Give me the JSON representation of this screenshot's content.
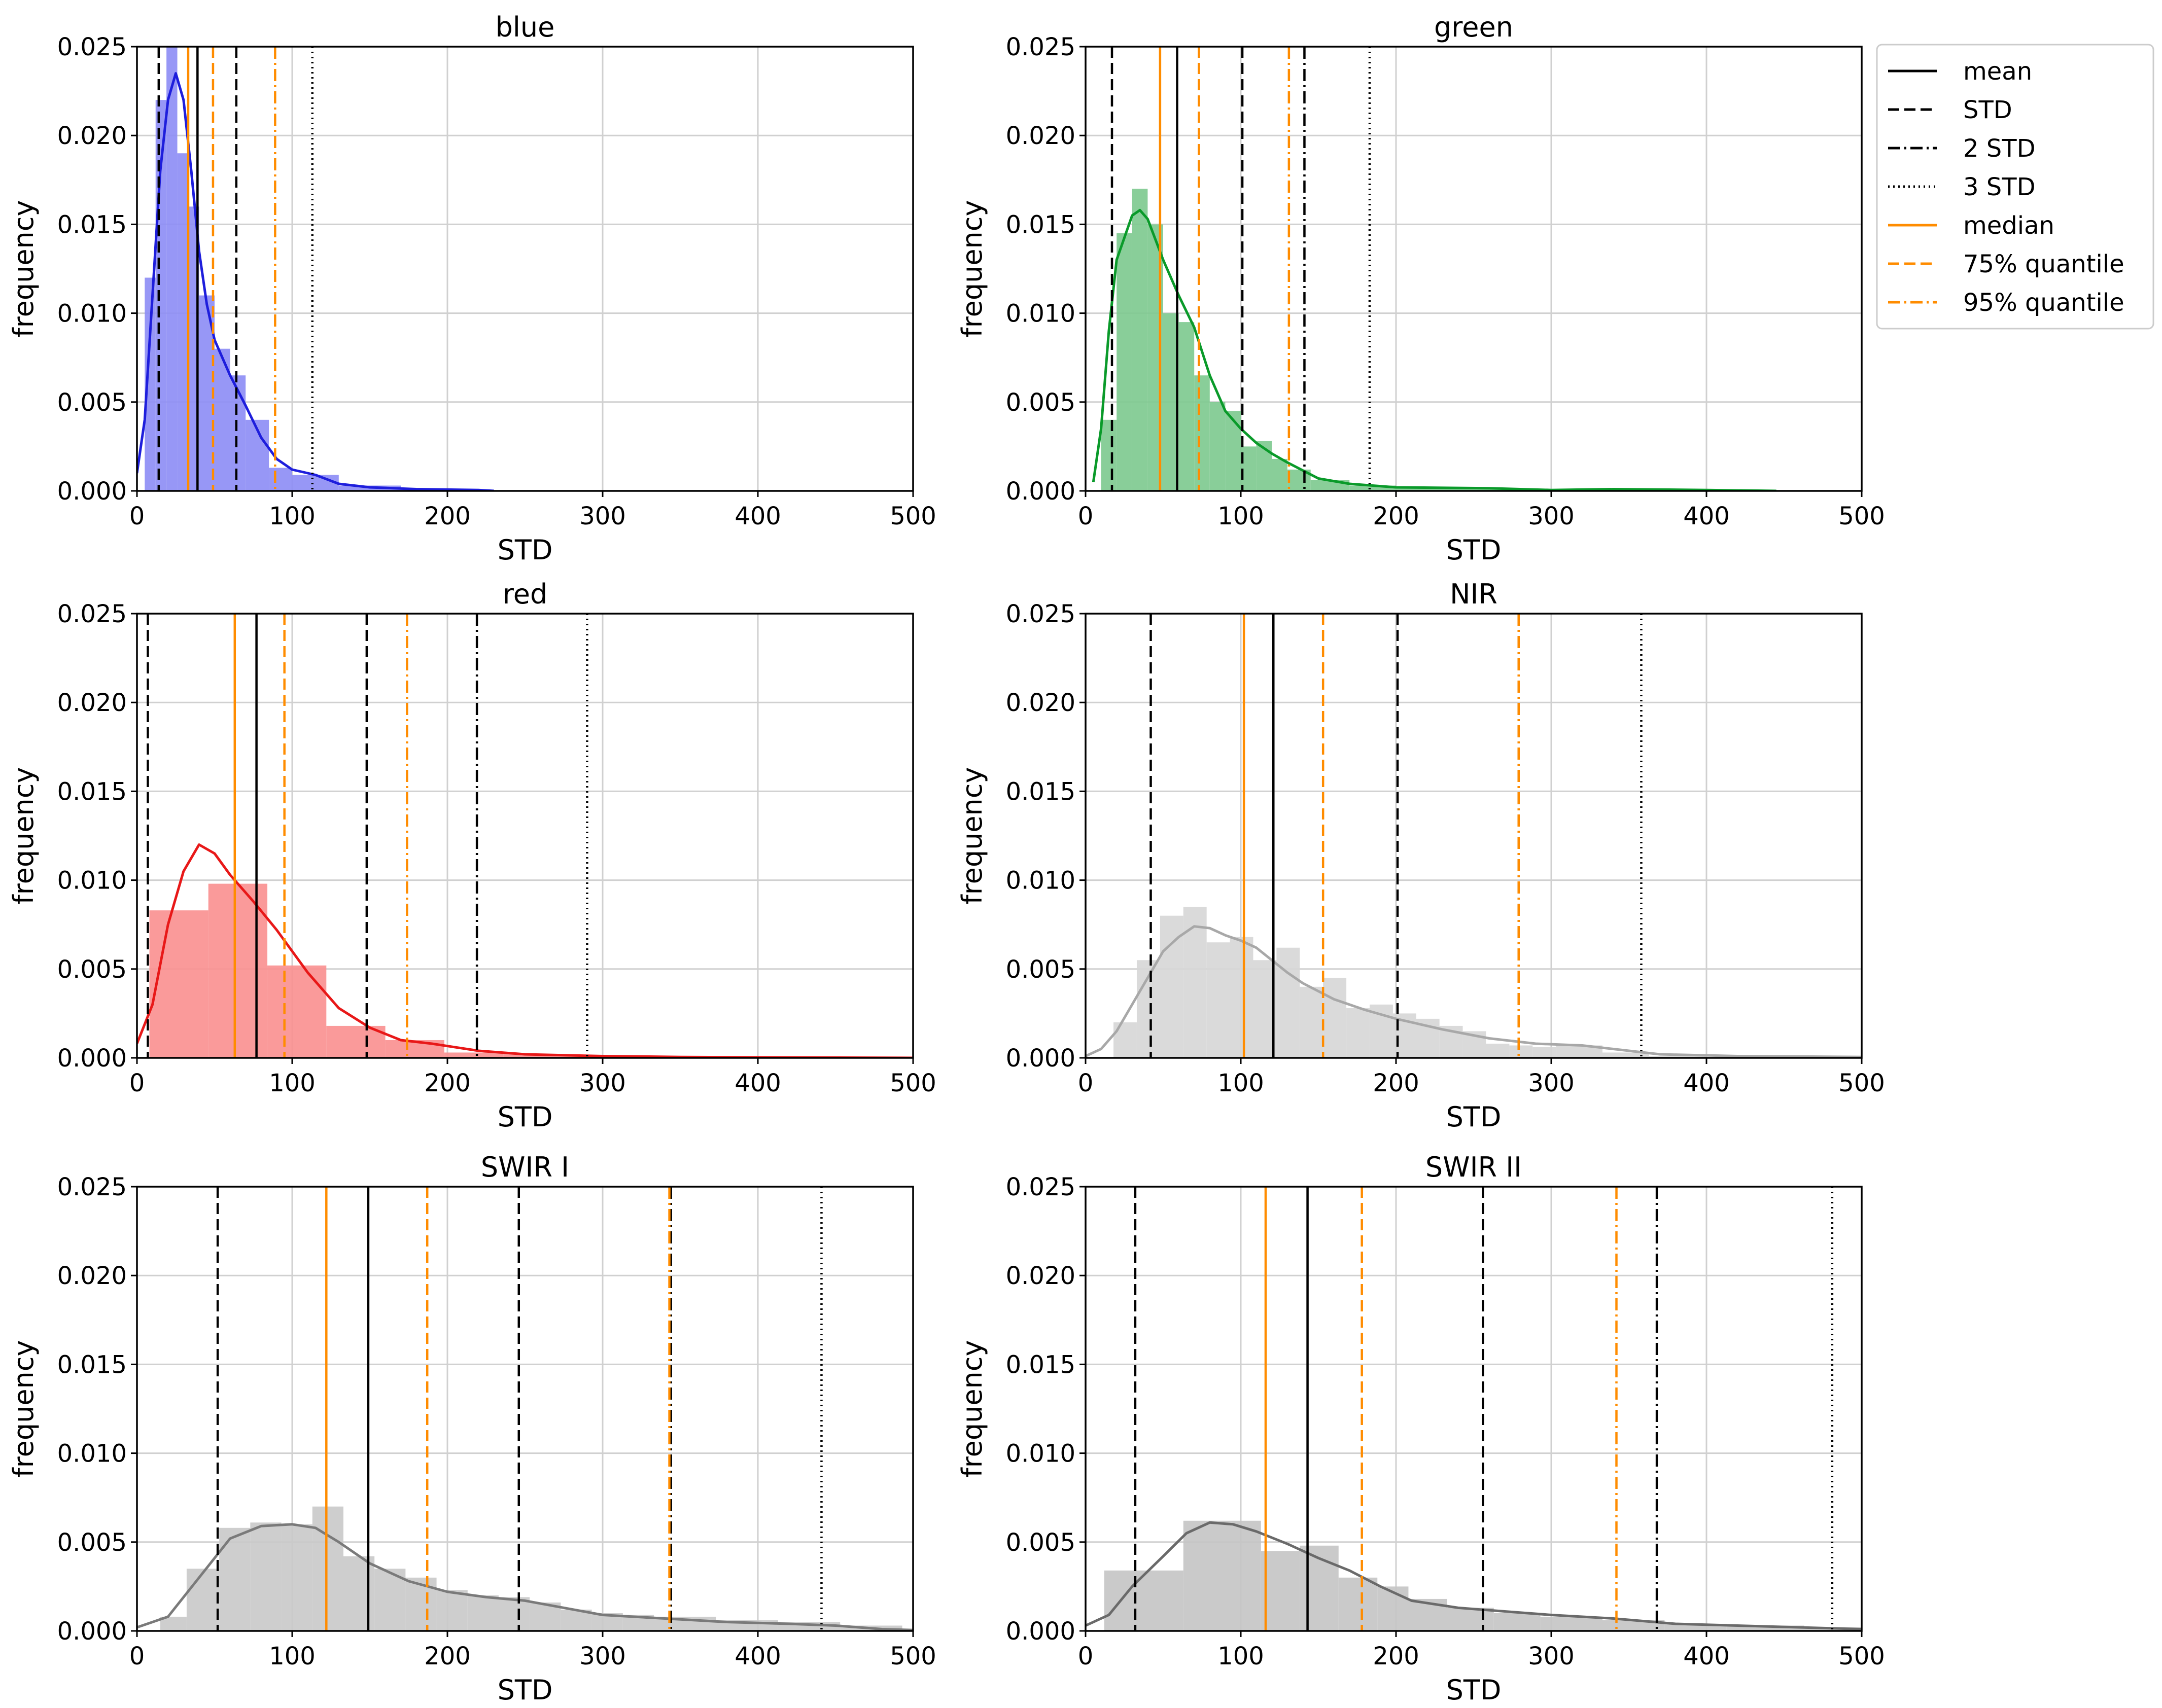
{
  "legend": {
    "placement": "top-right",
    "items": [
      {
        "label": "mean",
        "color": "#000000",
        "style": "solid"
      },
      {
        "label": "STD",
        "color": "#000000",
        "style": "dashed"
      },
      {
        "label": "2 STD",
        "color": "#000000",
        "style": "dashdot"
      },
      {
        "label": "3 STD",
        "color": "#000000",
        "style": "dotted"
      },
      {
        "label": "median",
        "color": "#ff8c00",
        "style": "solid"
      },
      {
        "label": "75% quantile",
        "color": "#ff8c00",
        "style": "dashed"
      },
      {
        "label": "95% quantile",
        "color": "#ff8c00",
        "style": "dashdot"
      }
    ]
  },
  "chart_data": [
    {
      "type": "histogram",
      "title": "blue",
      "xlabel": "STD",
      "ylabel": "frequency",
      "xlim": [
        0,
        500
      ],
      "ylim": [
        0,
        0.025
      ],
      "xticks": [
        "0",
        "100",
        "200",
        "300",
        "400",
        "500"
      ],
      "yticks": [
        "0.000",
        "0.005",
        "0.010",
        "0.015",
        "0.020",
        "0.025"
      ],
      "grid": true,
      "fill_color": "#8c8cf5",
      "line_color": "#1e1edc",
      "bins": [
        [
          5,
          12,
          0.012
        ],
        [
          12,
          19,
          0.022
        ],
        [
          19,
          26,
          0.026
        ],
        [
          26,
          33,
          0.019
        ],
        [
          33,
          40,
          0.016
        ],
        [
          40,
          50,
          0.011
        ],
        [
          50,
          60,
          0.008
        ],
        [
          60,
          70,
          0.0065
        ],
        [
          70,
          85,
          0.004
        ],
        [
          85,
          100,
          0.0013
        ],
        [
          100,
          130,
          0.0009
        ],
        [
          130,
          170,
          0.0003
        ],
        [
          170,
          225,
          0.0001
        ]
      ],
      "kde": [
        [
          0,
          0.001
        ],
        [
          5,
          0.004
        ],
        [
          10,
          0.011
        ],
        [
          15,
          0.018
        ],
        [
          20,
          0.022
        ],
        [
          25,
          0.0235
        ],
        [
          30,
          0.022
        ],
        [
          35,
          0.018
        ],
        [
          40,
          0.0135
        ],
        [
          45,
          0.0105
        ],
        [
          50,
          0.0085
        ],
        [
          60,
          0.0065
        ],
        [
          70,
          0.0048
        ],
        [
          80,
          0.003
        ],
        [
          90,
          0.0018
        ],
        [
          100,
          0.0012
        ],
        [
          115,
          0.0009
        ],
        [
          130,
          0.0004
        ],
        [
          150,
          0.0002
        ],
        [
          180,
          0.0001
        ],
        [
          220,
          5e-05
        ],
        [
          230,
          0
        ]
      ],
      "vlines": {
        "mean": 39,
        "std": [
          14,
          64
        ],
        "std2": [],
        "std3": [
          113
        ],
        "median": 33,
        "q75": 49,
        "q95": 89
      }
    },
    {
      "type": "histogram",
      "title": "green",
      "xlabel": "STD",
      "ylabel": "frequency",
      "xlim": [
        0,
        500
      ],
      "ylim": [
        0,
        0.025
      ],
      "xticks": [
        "0",
        "100",
        "200",
        "300",
        "400",
        "500"
      ],
      "yticks": [
        "0.000",
        "0.005",
        "0.010",
        "0.015",
        "0.020",
        "0.025"
      ],
      "grid": true,
      "fill_color": "#7cc98e",
      "line_color": "#0a9a2a",
      "bins": [
        [
          10,
          20,
          0.004
        ],
        [
          20,
          30,
          0.0145
        ],
        [
          30,
          40,
          0.017
        ],
        [
          40,
          50,
          0.015
        ],
        [
          50,
          60,
          0.01
        ],
        [
          60,
          70,
          0.0095
        ],
        [
          70,
          80,
          0.0065
        ],
        [
          80,
          90,
          0.005
        ],
        [
          90,
          100,
          0.0045
        ],
        [
          100,
          110,
          0.0025
        ],
        [
          110,
          120,
          0.0028
        ],
        [
          120,
          130,
          0.0018
        ],
        [
          130,
          145,
          0.0012
        ],
        [
          145,
          170,
          0.0006
        ],
        [
          170,
          200,
          0.0003
        ],
        [
          200,
          260,
          0.0002
        ],
        [
          260,
          350,
          0.0001
        ],
        [
          350,
          445,
          5e-05
        ]
      ],
      "kde": [
        [
          5,
          0.0005
        ],
        [
          10,
          0.0035
        ],
        [
          15,
          0.009
        ],
        [
          20,
          0.013
        ],
        [
          30,
          0.0155
        ],
        [
          35,
          0.0158
        ],
        [
          40,
          0.0153
        ],
        [
          50,
          0.013
        ],
        [
          60,
          0.011
        ],
        [
          70,
          0.0092
        ],
        [
          80,
          0.0065
        ],
        [
          90,
          0.0045
        ],
        [
          100,
          0.0035
        ],
        [
          110,
          0.0027
        ],
        [
          120,
          0.0021
        ],
        [
          130,
          0.0016
        ],
        [
          150,
          0.0007
        ],
        [
          170,
          0.0004
        ],
        [
          200,
          0.0002
        ],
        [
          260,
          0.00015
        ],
        [
          300,
          5e-05
        ],
        [
          340,
          0.0001
        ],
        [
          400,
          5e-05
        ],
        [
          445,
          0
        ]
      ],
      "vlines": {
        "mean": 59,
        "std": [
          17,
          101
        ],
        "std2": [
          141
        ],
        "std3": [
          183
        ],
        "median": 48,
        "q75": 73,
        "q95": 131
      }
    },
    {
      "type": "histogram",
      "title": "red",
      "xlabel": "STD",
      "ylabel": "frequency",
      "xlim": [
        0,
        500
      ],
      "ylim": [
        0,
        0.025
      ],
      "xticks": [
        "0",
        "100",
        "200",
        "300",
        "400",
        "500"
      ],
      "yticks": [
        "0.000",
        "0.005",
        "0.010",
        "0.015",
        "0.020",
        "0.025"
      ],
      "grid": true,
      "fill_color": "#f98f8f",
      "line_color": "#e81818",
      "bins": [
        [
          8,
          46,
          0.0083
        ],
        [
          46,
          84,
          0.0098
        ],
        [
          84,
          122,
          0.0052
        ],
        [
          122,
          160,
          0.0018
        ],
        [
          160,
          198,
          0.001
        ],
        [
          198,
          236,
          0.0003
        ],
        [
          236,
          274,
          0.0002
        ],
        [
          274,
          312,
          0.0001
        ],
        [
          312,
          350,
          0.0001
        ],
        [
          350,
          500,
          5e-05
        ]
      ],
      "kde": [
        [
          0,
          0.0008
        ],
        [
          10,
          0.003
        ],
        [
          20,
          0.0075
        ],
        [
          30,
          0.0105
        ],
        [
          40,
          0.012
        ],
        [
          50,
          0.0115
        ],
        [
          60,
          0.0103
        ],
        [
          75,
          0.0088
        ],
        [
          90,
          0.0072
        ],
        [
          110,
          0.0048
        ],
        [
          130,
          0.0028
        ],
        [
          150,
          0.0017
        ],
        [
          170,
          0.001
        ],
        [
          190,
          0.0008
        ],
        [
          220,
          0.0004
        ],
        [
          250,
          0.0002
        ],
        [
          300,
          0.0001
        ],
        [
          350,
          5e-05
        ],
        [
          400,
          3e-05
        ],
        [
          500,
          0
        ]
      ],
      "vlines": {
        "mean": 77,
        "std": [
          7,
          148
        ],
        "std2": [
          219
        ],
        "std3": [
          290
        ],
        "median": 63,
        "q75": 95,
        "q95": 174
      }
    },
    {
      "type": "histogram",
      "title": "NIR",
      "xlabel": "STD",
      "ylabel": "frequency",
      "xlim": [
        0,
        500
      ],
      "ylim": [
        0,
        0.025
      ],
      "xticks": [
        "0",
        "100",
        "200",
        "300",
        "400",
        "500"
      ],
      "yticks": [
        "0.000",
        "0.005",
        "0.010",
        "0.015",
        "0.020",
        "0.025"
      ],
      "grid": true,
      "fill_color": "#d6d6d6",
      "line_color": "#a8a8a8",
      "bins": [
        [
          18,
          33,
          0.002
        ],
        [
          33,
          48,
          0.0055
        ],
        [
          48,
          63,
          0.008
        ],
        [
          63,
          78,
          0.0085
        ],
        [
          78,
          93,
          0.0065
        ],
        [
          93,
          108,
          0.0068
        ],
        [
          108,
          123,
          0.0055
        ],
        [
          123,
          138,
          0.0062
        ],
        [
          138,
          153,
          0.004
        ],
        [
          153,
          168,
          0.0045
        ],
        [
          168,
          183,
          0.0028
        ],
        [
          183,
          198,
          0.003
        ],
        [
          198,
          213,
          0.0025
        ],
        [
          213,
          228,
          0.0022
        ],
        [
          228,
          243,
          0.0018
        ],
        [
          243,
          258,
          0.0015
        ],
        [
          258,
          273,
          0.0008
        ],
        [
          273,
          288,
          0.0007
        ],
        [
          288,
          303,
          0.0006
        ],
        [
          303,
          333,
          0.0007
        ],
        [
          333,
          363,
          0.0003
        ],
        [
          363,
          400,
          0.0001
        ]
      ],
      "kde": [
        [
          0,
          0.0001
        ],
        [
          10,
          0.0005
        ],
        [
          20,
          0.0015
        ],
        [
          30,
          0.003
        ],
        [
          40,
          0.0045
        ],
        [
          50,
          0.006
        ],
        [
          60,
          0.0068
        ],
        [
          70,
          0.0074
        ],
        [
          80,
          0.0073
        ],
        [
          90,
          0.0069
        ],
        [
          100,
          0.0066
        ],
        [
          110,
          0.0062
        ],
        [
          120,
          0.0055
        ],
        [
          130,
          0.0048
        ],
        [
          140,
          0.0042
        ],
        [
          160,
          0.0033
        ],
        [
          180,
          0.0027
        ],
        [
          200,
          0.0022
        ],
        [
          230,
          0.0016
        ],
        [
          260,
          0.0011
        ],
        [
          290,
          0.0008
        ],
        [
          320,
          0.0007
        ],
        [
          340,
          0.0005
        ],
        [
          370,
          0.0002
        ],
        [
          420,
          0.0001
        ],
        [
          500,
          5e-05
        ]
      ],
      "vlines": {
        "mean": 121,
        "std": [
          42,
          201
        ],
        "std2": [
          279
        ],
        "std3": [
          358
        ],
        "median": 102,
        "q75": 153,
        "q95": 279
      }
    },
    {
      "type": "histogram",
      "title": "SWIR I",
      "xlabel": "STD",
      "ylabel": "frequency",
      "xlim": [
        0,
        500
      ],
      "ylim": [
        0,
        0.025
      ],
      "xticks": [
        "0",
        "100",
        "200",
        "300",
        "400",
        "500"
      ],
      "yticks": [
        "0.000",
        "0.005",
        "0.010",
        "0.015",
        "0.020",
        "0.025"
      ],
      "grid": true,
      "fill_color": "#c9c9c9",
      "line_color": "#7a7a7a",
      "bins": [
        [
          15,
          32,
          0.0008
        ],
        [
          32,
          53,
          0.0035
        ],
        [
          53,
          73,
          0.0058
        ],
        [
          73,
          93,
          0.0061
        ],
        [
          93,
          113,
          0.006
        ],
        [
          113,
          133,
          0.007
        ],
        [
          133,
          153,
          0.0042
        ],
        [
          153,
          173,
          0.0035
        ],
        [
          173,
          193,
          0.003
        ],
        [
          193,
          213,
          0.0023
        ],
        [
          213,
          233,
          0.002
        ],
        [
          233,
          253,
          0.0019
        ],
        [
          253,
          273,
          0.0016
        ],
        [
          273,
          293,
          0.0012
        ],
        [
          293,
          313,
          0.001
        ],
        [
          313,
          333,
          0.0009
        ],
        [
          333,
          373,
          0.0008
        ],
        [
          373,
          413,
          0.0006
        ],
        [
          413,
          453,
          0.0005
        ],
        [
          453,
          493,
          0.0003
        ]
      ],
      "kde": [
        [
          0,
          0.0002
        ],
        [
          20,
          0.0008
        ],
        [
          40,
          0.003
        ],
        [
          60,
          0.0052
        ],
        [
          80,
          0.0059
        ],
        [
          100,
          0.006
        ],
        [
          115,
          0.0058
        ],
        [
          130,
          0.005
        ],
        [
          150,
          0.0038
        ],
        [
          175,
          0.0028
        ],
        [
          200,
          0.0022
        ],
        [
          225,
          0.0019
        ],
        [
          250,
          0.0017
        ],
        [
          275,
          0.0013
        ],
        [
          300,
          0.0009
        ],
        [
          340,
          0.0007
        ],
        [
          380,
          0.0005
        ],
        [
          420,
          0.0004
        ],
        [
          450,
          0.0003
        ],
        [
          480,
          0.0001
        ],
        [
          500,
          5e-05
        ]
      ],
      "vlines": {
        "mean": 149,
        "std": [
          52,
          246
        ],
        "std2": [
          344
        ],
        "std3": [
          441
        ],
        "median": 122,
        "q75": 187,
        "q95": 343
      }
    },
    {
      "type": "histogram",
      "title": "SWIR II",
      "xlabel": "STD",
      "ylabel": "frequency",
      "xlim": [
        0,
        500
      ],
      "ylim": [
        0,
        0.025
      ],
      "xticks": [
        "0",
        "100",
        "200",
        "300",
        "400",
        "500"
      ],
      "yticks": [
        "0.000",
        "0.005",
        "0.010",
        "0.015",
        "0.020",
        "0.025"
      ],
      "grid": true,
      "fill_color": "#c4c4c4",
      "line_color": "#6a6a6a",
      "bins": [
        [
          12,
          63,
          0.0034
        ],
        [
          63,
          113,
          0.0062
        ],
        [
          113,
          138,
          0.0045
        ],
        [
          138,
          163,
          0.0048
        ],
        [
          163,
          188,
          0.003
        ],
        [
          188,
          208,
          0.0025
        ],
        [
          208,
          233,
          0.0018
        ],
        [
          233,
          263,
          0.0013
        ],
        [
          263,
          293,
          0.001
        ],
        [
          293,
          333,
          0.0008
        ],
        [
          333,
          373,
          0.0006
        ],
        [
          373,
          413,
          0.0004
        ],
        [
          413,
          463,
          0.0003
        ],
        [
          463,
          500,
          0.0002
        ]
      ],
      "kde": [
        [
          0,
          0.0003
        ],
        [
          15,
          0.0009
        ],
        [
          30,
          0.0025
        ],
        [
          50,
          0.0042
        ],
        [
          65,
          0.0055
        ],
        [
          80,
          0.0061
        ],
        [
          95,
          0.006
        ],
        [
          110,
          0.0056
        ],
        [
          130,
          0.0049
        ],
        [
          150,
          0.0041
        ],
        [
          170,
          0.0034
        ],
        [
          190,
          0.0025
        ],
        [
          210,
          0.0017
        ],
        [
          240,
          0.0013
        ],
        [
          270,
          0.0011
        ],
        [
          300,
          0.0009
        ],
        [
          340,
          0.0007
        ],
        [
          380,
          0.0004
        ],
        [
          420,
          0.0003
        ],
        [
          460,
          0.0002
        ],
        [
          500,
          0.0001
        ]
      ],
      "vlines": {
        "mean": 143,
        "std": [
          32,
          256
        ],
        "std2": [
          368
        ],
        "std3": [
          481
        ],
        "median": 116,
        "q75": 178,
        "q95": 342
      }
    }
  ]
}
